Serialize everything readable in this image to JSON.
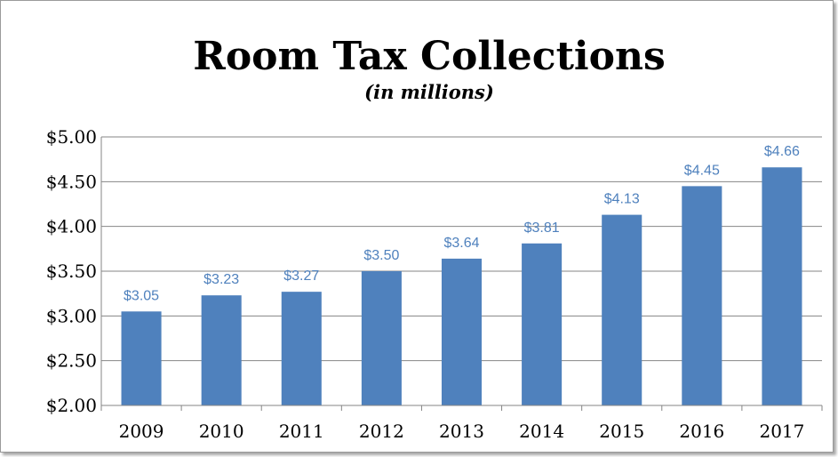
{
  "chart_data": {
    "type": "bar",
    "title": "Room Tax Collections",
    "subtitle": "(in millions)",
    "categories": [
      "2009",
      "2010",
      "2011",
      "2012",
      "2013",
      "2014",
      "2015",
      "2016",
      "2017"
    ],
    "values": [
      3.05,
      3.23,
      3.27,
      3.5,
      3.64,
      3.81,
      4.13,
      4.45,
      4.66
    ],
    "data_labels": [
      "$3.05",
      "$3.23",
      "$3.27",
      "$3.50",
      "$3.64",
      "$3.81",
      "$4.13",
      "$4.45",
      "$4.66"
    ],
    "yticks": [
      2.0,
      2.5,
      3.0,
      3.5,
      4.0,
      4.5,
      5.0
    ],
    "ytick_labels": [
      "$2.00",
      "$2.50",
      "$3.00",
      "$3.50",
      "$4.00",
      "$4.50",
      "$5.00"
    ],
    "ylim": [
      2.0,
      5.0
    ],
    "xlabel": "",
    "ylabel": "",
    "grid": true,
    "legend": "none",
    "colors": {
      "bar": "#4f81bd",
      "data_label": "#4f81bd",
      "grid": "#868686",
      "axis": "#868686"
    }
  }
}
